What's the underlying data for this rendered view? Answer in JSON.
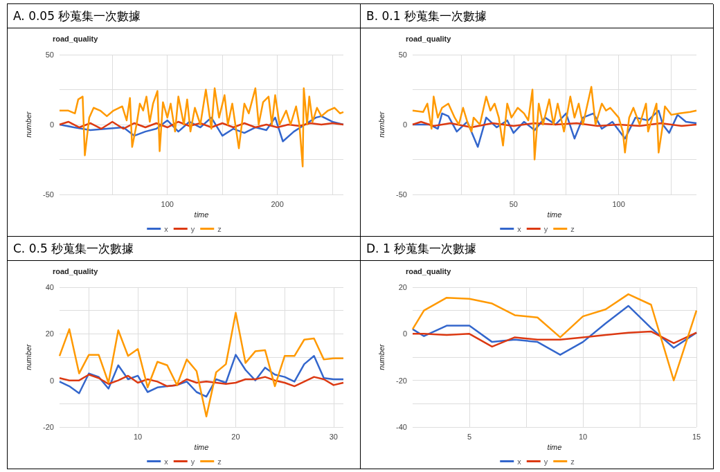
{
  "chart_data": [
    {
      "type": "line",
      "title": "A. 0.05 秒蒐集一次數據",
      "subtitle": "road_quality",
      "xlabel": "time",
      "ylabel": "number",
      "xlim": [
        2,
        260
      ],
      "xticks": [
        {
          "value": 50,
          "label": null
        },
        100,
        {
          "value": 150,
          "label": null
        },
        200,
        {
          "value": 250,
          "label": null
        }
      ],
      "ylim": [
        -50,
        50
      ],
      "yticks": [
        -50,
        {
          "value": -25,
          "label": null
        },
        0,
        {
          "value": 25,
          "label": null
        },
        50
      ],
      "grid": true,
      "legend": "bottom",
      "marker": "none",
      "line_style": "solid",
      "series": [
        {
          "name": "x",
          "color": "#3366cc",
          "x": [
            2,
            15,
            30,
            45,
            60,
            70,
            80,
            90,
            100,
            110,
            120,
            130,
            140,
            150,
            160,
            170,
            180,
            190,
            198,
            205,
            215,
            225,
            235,
            240,
            250,
            260
          ],
          "values": [
            0,
            -2,
            -4,
            -3,
            -2,
            -8,
            -5,
            -3,
            3,
            -5,
            2,
            -2,
            5,
            -8,
            -3,
            -6,
            -2,
            -4,
            5,
            -12,
            -5,
            0,
            5,
            6,
            2,
            0
          ]
        },
        {
          "name": "y",
          "color": "#dc3912",
          "x": [
            2,
            10,
            20,
            30,
            40,
            50,
            60,
            70,
            80,
            90,
            100,
            110,
            120,
            130,
            140,
            150,
            160,
            170,
            180,
            190,
            200,
            210,
            220,
            230,
            240,
            250,
            260
          ],
          "values": [
            0,
            2,
            -2,
            1,
            -3,
            2,
            -3,
            1,
            -2,
            1,
            -2,
            2,
            -1,
            1,
            -2,
            1,
            -2,
            1,
            -2,
            0,
            -2,
            0,
            -1,
            1,
            0,
            1,
            0
          ]
        },
        {
          "name": "z",
          "color": "#ff9900",
          "x": [
            2,
            10,
            16,
            19,
            23,
            25,
            29,
            33,
            39,
            45,
            51,
            59,
            63,
            66,
            68,
            72,
            75,
            78,
            81,
            84,
            87,
            91,
            93,
            96,
            100,
            103,
            107,
            110,
            115,
            118,
            121,
            125,
            130,
            135,
            140,
            143,
            147,
            152,
            155,
            159,
            165,
            170,
            174,
            180,
            183,
            187,
            192,
            195,
            198,
            202,
            208,
            212,
            217,
            220,
            223,
            224,
            227,
            229,
            232,
            236,
            240,
            246,
            252,
            257,
            260
          ],
          "values": [
            10,
            10,
            8,
            18,
            20,
            -22,
            5,
            12,
            10,
            6,
            10,
            13,
            3,
            19,
            -16,
            0,
            15,
            10,
            20,
            2,
            15,
            24,
            -19,
            16,
            5,
            15,
            -5,
            20,
            0,
            18,
            -5,
            12,
            0,
            25,
            -3,
            26,
            5,
            21,
            0,
            15,
            -17,
            15,
            8,
            26,
            0,
            16,
            20,
            0,
            21,
            0,
            10,
            0,
            13,
            0,
            -30,
            26,
            0,
            20,
            2,
            12,
            6,
            10,
            12,
            8,
            9
          ]
        }
      ]
    },
    {
      "type": "line",
      "title": "B. 0.1 秒蒐集一次數據",
      "subtitle": "road_quality",
      "xlabel": "time",
      "ylabel": "number",
      "xlim": [
        2,
        137
      ],
      "xticks": [
        {
          "value": 25,
          "label": null
        },
        50,
        {
          "value": 75,
          "label": null
        },
        100,
        {
          "value": 125,
          "label": null
        }
      ],
      "ylim": [
        -50,
        50
      ],
      "yticks": [
        -50,
        {
          "value": -25,
          "label": null
        },
        0,
        {
          "value": 25,
          "label": null
        },
        50
      ],
      "grid": true,
      "legend": "bottom",
      "marker": "none",
      "line_style": "solid",
      "series": [
        {
          "name": "x",
          "color": "#3366cc",
          "x": [
            2,
            10,
            14,
            16,
            19,
            23,
            28,
            33,
            37,
            42,
            47,
            50,
            55,
            60,
            65,
            70,
            75,
            79,
            83,
            88,
            92,
            97,
            103,
            108,
            114,
            119,
            121,
            124,
            128,
            132,
            137
          ],
          "values": [
            0,
            0,
            -3,
            8,
            6,
            -5,
            2,
            -16,
            5,
            -2,
            3,
            -6,
            2,
            -4,
            5,
            0,
            8,
            -10,
            5,
            8,
            -3,
            2,
            -10,
            5,
            3,
            10,
            0,
            -6,
            7,
            2,
            1
          ]
        },
        {
          "name": "y",
          "color": "#dc3912",
          "x": [
            2,
            6,
            12,
            20,
            30,
            40,
            50,
            60,
            70,
            80,
            90,
            100,
            110,
            120,
            130,
            137
          ],
          "values": [
            0,
            2,
            -1,
            1,
            -2,
            1,
            -1,
            1,
            0,
            1,
            -1,
            0,
            -1,
            1,
            -1,
            0
          ]
        },
        {
          "name": "z",
          "color": "#ff9900",
          "x": [
            2,
            7,
            9,
            11,
            12,
            14,
            16,
            19,
            22,
            24,
            26,
            28,
            30,
            31,
            34,
            37,
            39,
            41,
            43,
            45,
            47,
            49,
            52,
            55,
            57,
            59,
            60,
            62,
            64,
            67,
            69,
            71,
            74,
            77,
            79,
            81,
            83,
            87,
            89,
            92,
            94,
            96,
            100,
            102,
            103,
            105,
            107,
            110,
            113,
            114,
            116,
            118,
            119,
            121,
            122,
            125,
            129,
            134,
            137
          ],
          "values": [
            10,
            9,
            15,
            -3,
            20,
            5,
            12,
            15,
            5,
            0,
            12,
            2,
            -5,
            5,
            0,
            20,
            10,
            15,
            5,
            -15,
            15,
            5,
            12,
            8,
            3,
            25,
            -25,
            15,
            0,
            18,
            0,
            15,
            -5,
            20,
            5,
            15,
            0,
            27,
            0,
            15,
            10,
            12,
            5,
            -5,
            -20,
            5,
            12,
            0,
            15,
            -5,
            5,
            15,
            -20,
            0,
            13,
            7,
            8,
            9,
            10
          ]
        }
      ]
    },
    {
      "type": "line",
      "title": "C. 0.5 秒蒐集一次數據",
      "subtitle": "road_quality",
      "xlabel": "time",
      "ylabel": "number",
      "xlim": [
        2,
        31
      ],
      "xticks": [
        {
          "value": 5,
          "label": null
        },
        10,
        {
          "value": 15,
          "label": null
        },
        20,
        {
          "value": 25,
          "label": null
        },
        30
      ],
      "ylim": [
        -20,
        40
      ],
      "yticks": [
        -20,
        {
          "value": -10,
          "label": null
        },
        0,
        {
          "value": 10,
          "label": null
        },
        20,
        {
          "value": 30,
          "label": null
        },
        40
      ],
      "grid": true,
      "legend": "bottom",
      "marker": "none",
      "line_style": "solid",
      "x": [
        2,
        3,
        4,
        5,
        6,
        7,
        8,
        9,
        10,
        11,
        12,
        13,
        14,
        15,
        16,
        17,
        18,
        19,
        20,
        21,
        22,
        23,
        24,
        25,
        26,
        27,
        28,
        29,
        30,
        31
      ],
      "series": [
        {
          "name": "x",
          "color": "#3366cc",
          "values": [
            -0.5,
            -2.5,
            -5.5,
            3,
            1.5,
            -3.5,
            6.5,
            0.5,
            2,
            -5,
            -3,
            -2.5,
            -2,
            -0.5,
            -5,
            -7,
            0.5,
            -1,
            11,
            4.5,
            0,
            5.5,
            2.5,
            1.5,
            -0.5,
            7,
            10.5,
            1,
            0.5,
            0.5
          ]
        },
        {
          "name": "y",
          "color": "#dc3912",
          "values": [
            1,
            0,
            0,
            2.5,
            1,
            -1.5,
            0,
            2,
            -1,
            0.5,
            -0.5,
            -2.5,
            -2,
            0.5,
            -1,
            -0.5,
            -1,
            -1.5,
            -1,
            0.5,
            0.5,
            1.5,
            0,
            -1,
            -2.5,
            -0.5,
            1.5,
            0.5,
            -2,
            -1
          ]
        },
        {
          "name": "z",
          "color": "#ff9900",
          "values": [
            10.5,
            22,
            3,
            11,
            11,
            -1,
            21.5,
            10.5,
            13.5,
            -3,
            8,
            6.5,
            -2,
            9,
            4,
            -15.5,
            3.5,
            7,
            29,
            7.5,
            12.5,
            13,
            -2.5,
            10.5,
            10.5,
            17.5,
            18,
            9,
            9.5,
            9.5
          ]
        }
      ]
    },
    {
      "type": "line",
      "title": "D. 1 秒蒐集一次數據",
      "subtitle": "road_quality",
      "xlabel": "time",
      "ylabel": "number",
      "xlim": [
        2.5,
        15
      ],
      "xticks": [
        5,
        {
          "value": 7.5,
          "label": null
        },
        10,
        {
          "value": 12.5,
          "label": null
        },
        15
      ],
      "ylim": [
        -40,
        20
      ],
      "yticks": [
        -40,
        {
          "value": -30,
          "label": null
        },
        -20,
        {
          "value": -10,
          "label": null
        },
        0,
        {
          "value": 10,
          "label": null
        },
        20
      ],
      "grid": true,
      "legend": "bottom",
      "marker": "none",
      "line_style": "solid",
      "x": [
        2.5,
        3,
        4,
        5,
        6,
        7,
        8,
        9,
        10,
        11,
        12,
        13,
        14,
        15
      ],
      "series": [
        {
          "name": "x",
          "color": "#3366cc",
          "values": [
            2,
            -1,
            3.5,
            3.5,
            -3.5,
            -2.5,
            -3.5,
            -9,
            -3.5,
            4.5,
            12,
            2.5,
            -6,
            0.5
          ]
        },
        {
          "name": "y",
          "color": "#dc3912",
          "values": [
            0,
            0,
            -0.5,
            0,
            -5.5,
            -1.5,
            -2.5,
            -2.5,
            -1.5,
            -0.5,
            0.5,
            1,
            -4,
            0.5
          ]
        },
        {
          "name": "z",
          "color": "#ff9900",
          "values": [
            2,
            10,
            15.5,
            15,
            13,
            8,
            7,
            -1.5,
            7.5,
            10.5,
            17,
            12.5,
            -20,
            10
          ]
        }
      ]
    }
  ]
}
